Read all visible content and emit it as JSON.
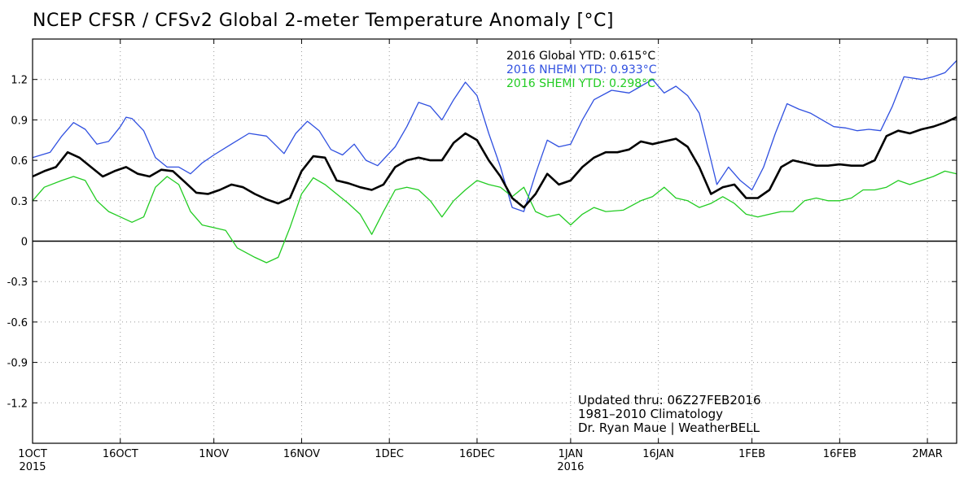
{
  "chart_data": {
    "type": "line",
    "title": "NCEP CFSR / CFSv2 Global 2-meter Temperature Anomaly [°C]",
    "xlabel": "",
    "ylabel": "",
    "x_start": "2015-10-01",
    "x_end": "2016-03-07",
    "ylim": [
      -1.5,
      1.5
    ],
    "yticks": [
      1.2,
      0.9,
      0.6,
      0.3,
      0,
      -0.3,
      -0.6,
      -0.9,
      -1.2
    ],
    "ytick_labels": [
      "1.2",
      "0.9",
      "0.6",
      "0.3",
      "0",
      "-0.3",
      "-0.6",
      "-0.9",
      "-1.2"
    ],
    "xticks": [
      {
        "date": "2015-10-01",
        "label": "1OCT",
        "sublabel": "2015"
      },
      {
        "date": "2015-10-16",
        "label": "16OCT",
        "sublabel": ""
      },
      {
        "date": "2015-11-01",
        "label": "1NOV",
        "sublabel": ""
      },
      {
        "date": "2015-11-16",
        "label": "16NOV",
        "sublabel": ""
      },
      {
        "date": "2015-12-01",
        "label": "1DEC",
        "sublabel": ""
      },
      {
        "date": "2015-12-16",
        "label": "16DEC",
        "sublabel": ""
      },
      {
        "date": "2016-01-01",
        "label": "1JAN",
        "sublabel": "2016"
      },
      {
        "date": "2016-01-16",
        "label": "16JAN",
        "sublabel": ""
      },
      {
        "date": "2016-02-01",
        "label": "1FEB",
        "sublabel": ""
      },
      {
        "date": "2016-02-16",
        "label": "16FEB",
        "sublabel": ""
      },
      {
        "date": "2016-03-02",
        "label": "2MAR",
        "sublabel": ""
      }
    ],
    "grid": true,
    "zero_line": true,
    "legend_placement": "top-center",
    "legend": [
      {
        "text": "2016 Global YTD: 0.615°C",
        "color": "#000000"
      },
      {
        "text": "2016 NHEMI YTD: 0.933°C",
        "color": "#3050e0"
      },
      {
        "text": "2016 SHEMI YTD: 0.298°C",
        "color": "#22cc22"
      }
    ],
    "annotations": [
      "Updated thru: 06Z27FEB2016",
      "1981–2010 Climatology",
      "Dr. Ryan Maue | WeatherBELL"
    ],
    "series": [
      {
        "color": "#3050e0",
        "stroke_width": 1.3,
        "points": [
          [
            "2015-10-01",
            0.62
          ],
          [
            "2015-10-04",
            0.66
          ],
          [
            "2015-10-06",
            0.78
          ],
          [
            "2015-10-08",
            0.88
          ],
          [
            "2015-10-10",
            0.83
          ],
          [
            "2015-10-12",
            0.72
          ],
          [
            "2015-10-14",
            0.74
          ],
          [
            "2015-10-16",
            0.85
          ],
          [
            "2015-10-17",
            0.92
          ],
          [
            "2015-10-18",
            0.91
          ],
          [
            "2015-10-20",
            0.82
          ],
          [
            "2015-10-22",
            0.62
          ],
          [
            "2015-10-24",
            0.55
          ],
          [
            "2015-10-26",
            0.55
          ],
          [
            "2015-10-28",
            0.5
          ],
          [
            "2015-10-30",
            0.58
          ],
          [
            "2015-11-01",
            0.64
          ],
          [
            "2015-11-04",
            0.72
          ],
          [
            "2015-11-07",
            0.8
          ],
          [
            "2015-11-10",
            0.78
          ],
          [
            "2015-11-13",
            0.65
          ],
          [
            "2015-11-15",
            0.8
          ],
          [
            "2015-11-17",
            0.89
          ],
          [
            "2015-11-19",
            0.82
          ],
          [
            "2015-11-21",
            0.68
          ],
          [
            "2015-11-23",
            0.64
          ],
          [
            "2015-11-25",
            0.72
          ],
          [
            "2015-11-27",
            0.6
          ],
          [
            "2015-11-29",
            0.56
          ],
          [
            "2015-12-02",
            0.7
          ],
          [
            "2015-12-04",
            0.85
          ],
          [
            "2015-12-06",
            1.03
          ],
          [
            "2015-12-08",
            1.0
          ],
          [
            "2015-12-10",
            0.9
          ],
          [
            "2015-12-12",
            1.05
          ],
          [
            "2015-12-14",
            1.18
          ],
          [
            "2015-12-16",
            1.08
          ],
          [
            "2015-12-18",
            0.8
          ],
          [
            "2015-12-20",
            0.55
          ],
          [
            "2015-12-22",
            0.25
          ],
          [
            "2015-12-24",
            0.22
          ],
          [
            "2015-12-26",
            0.5
          ],
          [
            "2015-12-28",
            0.75
          ],
          [
            "2015-12-30",
            0.7
          ],
          [
            "2016-01-01",
            0.72
          ],
          [
            "2016-01-03",
            0.9
          ],
          [
            "2016-01-05",
            1.05
          ],
          [
            "2016-01-08",
            1.12
          ],
          [
            "2016-01-11",
            1.1
          ],
          [
            "2016-01-13",
            1.15
          ],
          [
            "2016-01-15",
            1.2
          ],
          [
            "2016-01-17",
            1.1
          ],
          [
            "2016-01-19",
            1.15
          ],
          [
            "2016-01-21",
            1.08
          ],
          [
            "2016-01-23",
            0.95
          ],
          [
            "2016-01-25",
            0.6
          ],
          [
            "2016-01-26",
            0.42
          ],
          [
            "2016-01-28",
            0.55
          ],
          [
            "2016-01-30",
            0.45
          ],
          [
            "2016-02-01",
            0.38
          ],
          [
            "2016-02-03",
            0.55
          ],
          [
            "2016-02-05",
            0.8
          ],
          [
            "2016-02-07",
            1.02
          ],
          [
            "2016-02-09",
            0.98
          ],
          [
            "2016-02-11",
            0.95
          ],
          [
            "2016-02-13",
            0.9
          ],
          [
            "2016-02-15",
            0.85
          ],
          [
            "2016-02-17",
            0.84
          ],
          [
            "2016-02-19",
            0.82
          ],
          [
            "2016-02-21",
            0.83
          ],
          [
            "2016-02-23",
            0.82
          ],
          [
            "2016-02-25",
            1.0
          ],
          [
            "2016-02-27",
            1.22
          ],
          [
            "2016-03-01",
            1.2
          ],
          [
            "2016-03-03",
            1.22
          ],
          [
            "2016-03-05",
            1.25
          ],
          [
            "2016-03-07",
            1.34
          ]
        ]
      },
      {
        "color": "#22cc22",
        "stroke_width": 1.3,
        "points": [
          [
            "2015-10-01",
            0.3
          ],
          [
            "2015-10-03",
            0.4
          ],
          [
            "2015-10-06",
            0.45
          ],
          [
            "2015-10-08",
            0.48
          ],
          [
            "2015-10-10",
            0.45
          ],
          [
            "2015-10-12",
            0.3
          ],
          [
            "2015-10-14",
            0.22
          ],
          [
            "2015-10-16",
            0.18
          ],
          [
            "2015-10-18",
            0.14
          ],
          [
            "2015-10-20",
            0.18
          ],
          [
            "2015-10-22",
            0.4
          ],
          [
            "2015-10-24",
            0.48
          ],
          [
            "2015-10-26",
            0.42
          ],
          [
            "2015-10-28",
            0.22
          ],
          [
            "2015-10-30",
            0.12
          ],
          [
            "2015-11-01",
            0.1
          ],
          [
            "2015-11-03",
            0.08
          ],
          [
            "2015-11-05",
            -0.05
          ],
          [
            "2015-11-08",
            -0.12
          ],
          [
            "2015-11-10",
            -0.16
          ],
          [
            "2015-11-12",
            -0.12
          ],
          [
            "2015-11-14",
            0.1
          ],
          [
            "2015-11-16",
            0.35
          ],
          [
            "2015-11-18",
            0.47
          ],
          [
            "2015-11-20",
            0.42
          ],
          [
            "2015-11-22",
            0.35
          ],
          [
            "2015-11-24",
            0.28
          ],
          [
            "2015-11-26",
            0.2
          ],
          [
            "2015-11-28",
            0.05
          ],
          [
            "2015-11-30",
            0.22
          ],
          [
            "2015-12-02",
            0.38
          ],
          [
            "2015-12-04",
            0.4
          ],
          [
            "2015-12-06",
            0.38
          ],
          [
            "2015-12-08",
            0.3
          ],
          [
            "2015-12-10",
            0.18
          ],
          [
            "2015-12-12",
            0.3
          ],
          [
            "2015-12-14",
            0.38
          ],
          [
            "2015-12-16",
            0.45
          ],
          [
            "2015-12-18",
            0.42
          ],
          [
            "2015-12-20",
            0.4
          ],
          [
            "2015-12-22",
            0.33
          ],
          [
            "2015-12-24",
            0.4
          ],
          [
            "2015-12-26",
            0.22
          ],
          [
            "2015-12-28",
            0.18
          ],
          [
            "2015-12-30",
            0.2
          ],
          [
            "2016-01-01",
            0.12
          ],
          [
            "2016-01-03",
            0.2
          ],
          [
            "2016-01-05",
            0.25
          ],
          [
            "2016-01-07",
            0.22
          ],
          [
            "2016-01-10",
            0.23
          ],
          [
            "2016-01-13",
            0.3
          ],
          [
            "2016-01-15",
            0.33
          ],
          [
            "2016-01-17",
            0.4
          ],
          [
            "2016-01-19",
            0.32
          ],
          [
            "2016-01-21",
            0.3
          ],
          [
            "2016-01-23",
            0.25
          ],
          [
            "2016-01-25",
            0.28
          ],
          [
            "2016-01-27",
            0.33
          ],
          [
            "2016-01-29",
            0.28
          ],
          [
            "2016-01-31",
            0.2
          ],
          [
            "2016-02-02",
            0.18
          ],
          [
            "2016-02-04",
            0.2
          ],
          [
            "2016-02-06",
            0.22
          ],
          [
            "2016-02-08",
            0.22
          ],
          [
            "2016-02-10",
            0.3
          ],
          [
            "2016-02-12",
            0.32
          ],
          [
            "2016-02-14",
            0.3
          ],
          [
            "2016-02-16",
            0.3
          ],
          [
            "2016-02-18",
            0.32
          ],
          [
            "2016-02-20",
            0.38
          ],
          [
            "2016-02-22",
            0.38
          ],
          [
            "2016-02-24",
            0.4
          ],
          [
            "2016-02-26",
            0.45
          ],
          [
            "2016-02-28",
            0.42
          ],
          [
            "2016-03-01",
            0.45
          ],
          [
            "2016-03-03",
            0.48
          ],
          [
            "2016-03-05",
            0.52
          ],
          [
            "2016-03-07",
            0.5
          ]
        ]
      },
      {
        "color": "#000000",
        "stroke_width": 2.6,
        "points": [
          [
            "2015-10-01",
            0.48
          ],
          [
            "2015-10-03",
            0.52
          ],
          [
            "2015-10-05",
            0.55
          ],
          [
            "2015-10-07",
            0.66
          ],
          [
            "2015-10-09",
            0.62
          ],
          [
            "2015-10-11",
            0.55
          ],
          [
            "2015-10-13",
            0.48
          ],
          [
            "2015-10-15",
            0.52
          ],
          [
            "2015-10-17",
            0.55
          ],
          [
            "2015-10-19",
            0.5
          ],
          [
            "2015-10-21",
            0.48
          ],
          [
            "2015-10-23",
            0.53
          ],
          [
            "2015-10-25",
            0.52
          ],
          [
            "2015-10-27",
            0.44
          ],
          [
            "2015-10-29",
            0.36
          ],
          [
            "2015-10-31",
            0.35
          ],
          [
            "2015-11-02",
            0.38
          ],
          [
            "2015-11-04",
            0.42
          ],
          [
            "2015-11-06",
            0.4
          ],
          [
            "2015-11-08",
            0.35
          ],
          [
            "2015-11-10",
            0.31
          ],
          [
            "2015-11-12",
            0.28
          ],
          [
            "2015-11-14",
            0.32
          ],
          [
            "2015-11-16",
            0.52
          ],
          [
            "2015-11-18",
            0.63
          ],
          [
            "2015-11-20",
            0.62
          ],
          [
            "2015-11-22",
            0.45
          ],
          [
            "2015-11-24",
            0.43
          ],
          [
            "2015-11-26",
            0.4
          ],
          [
            "2015-11-28",
            0.38
          ],
          [
            "2015-11-30",
            0.42
          ],
          [
            "2015-12-02",
            0.55
          ],
          [
            "2015-12-04",
            0.6
          ],
          [
            "2015-12-06",
            0.62
          ],
          [
            "2015-12-08",
            0.6
          ],
          [
            "2015-12-10",
            0.6
          ],
          [
            "2015-12-12",
            0.73
          ],
          [
            "2015-12-14",
            0.8
          ],
          [
            "2015-12-16",
            0.75
          ],
          [
            "2015-12-18",
            0.6
          ],
          [
            "2015-12-20",
            0.48
          ],
          [
            "2015-12-22",
            0.32
          ],
          [
            "2015-12-24",
            0.25
          ],
          [
            "2015-12-26",
            0.35
          ],
          [
            "2015-12-28",
            0.5
          ],
          [
            "2015-12-30",
            0.42
          ],
          [
            "2016-01-01",
            0.45
          ],
          [
            "2016-01-03",
            0.55
          ],
          [
            "2016-01-05",
            0.62
          ],
          [
            "2016-01-07",
            0.66
          ],
          [
            "2016-01-09",
            0.66
          ],
          [
            "2016-01-11",
            0.68
          ],
          [
            "2016-01-13",
            0.74
          ],
          [
            "2016-01-15",
            0.72
          ],
          [
            "2016-01-17",
            0.74
          ],
          [
            "2016-01-19",
            0.76
          ],
          [
            "2016-01-21",
            0.7
          ],
          [
            "2016-01-23",
            0.55
          ],
          [
            "2016-01-25",
            0.35
          ],
          [
            "2016-01-27",
            0.4
          ],
          [
            "2016-01-29",
            0.42
          ],
          [
            "2016-01-31",
            0.32
          ],
          [
            "2016-02-02",
            0.32
          ],
          [
            "2016-02-04",
            0.38
          ],
          [
            "2016-02-06",
            0.55
          ],
          [
            "2016-02-08",
            0.6
          ],
          [
            "2016-02-10",
            0.58
          ],
          [
            "2016-02-12",
            0.56
          ],
          [
            "2016-02-14",
            0.56
          ],
          [
            "2016-02-16",
            0.57
          ],
          [
            "2016-02-18",
            0.56
          ],
          [
            "2016-02-20",
            0.56
          ],
          [
            "2016-02-22",
            0.6
          ],
          [
            "2016-02-24",
            0.78
          ],
          [
            "2016-02-26",
            0.82
          ],
          [
            "2016-02-28",
            0.8
          ],
          [
            "2016-03-01",
            0.83
          ],
          [
            "2016-03-03",
            0.85
          ],
          [
            "2016-03-05",
            0.88
          ],
          [
            "2016-03-07",
            0.92
          ]
        ]
      }
    ]
  }
}
